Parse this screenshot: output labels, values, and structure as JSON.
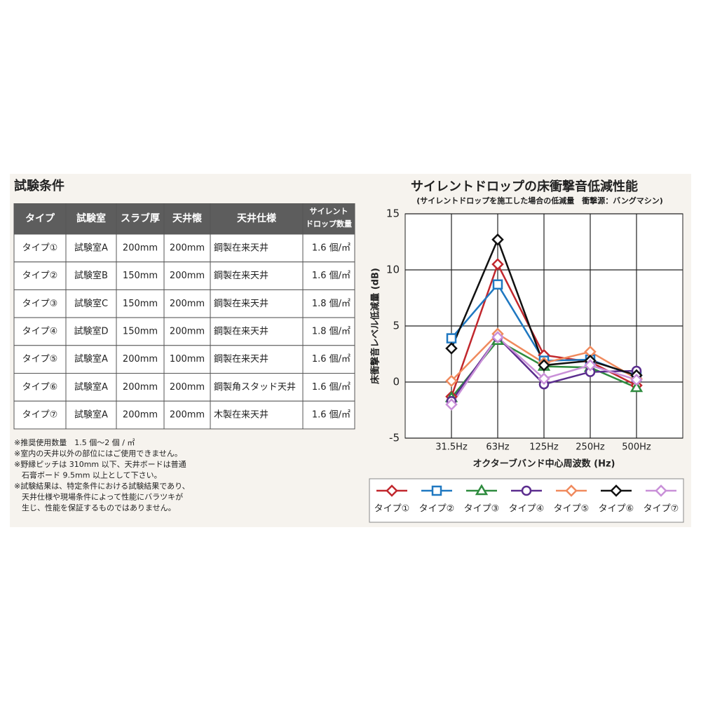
{
  "section_title": "試験条件",
  "table": {
    "header": [
      "タイプ",
      "試験室",
      "スラブ厚",
      "天井懐",
      "天井仕様",
      [
        "サイレント",
        "ドロップ数量"
      ]
    ],
    "rows": [
      [
        "タイプ①",
        "試験室A",
        "200mm",
        "200mm",
        "鋼製在来天井",
        "1.6 個/㎡"
      ],
      [
        "タイプ②",
        "試験室B",
        "150mm",
        "200mm",
        "鋼製在来天井",
        "1.6 個/㎡"
      ],
      [
        "タイプ③",
        "試験室C",
        "150mm",
        "200mm",
        "鋼製在来天井",
        "1.8 個/㎡"
      ],
      [
        "タイプ④",
        "試験室D",
        "150mm",
        "200mm",
        "鋼製在来天井",
        "1.8 個/㎡"
      ],
      [
        "タイプ⑤",
        "試験室A",
        "200mm",
        "100mm",
        "鋼製在来天井",
        "1.6 個/㎡"
      ],
      [
        "タイプ⑥",
        "試験室A",
        "200mm",
        "200mm",
        "鋼製角スタッド天井",
        "1.6 個/㎡"
      ],
      [
        "タイプ⑦",
        "試験室A",
        "200mm",
        "200mm",
        "木製在来天井",
        "1.6 個/㎡"
      ]
    ]
  },
  "notes": [
    "※推奨使用数量　1.5 個〜2 個 / ㎡",
    "※室内の天井以外の部位にはご使用できません。",
    "※野縁ピッチは 310mm 以下、天井ボードは普通",
    "　石膏ボード 9.5mm 以上として下さい。",
    "※試験結果は、特定条件における試験結果であり、",
    "　天井仕様や現場条件によって性能にバラツキが",
    "　生じ、性能を保証するものではありません。"
  ],
  "chart_data": {
    "type": "line",
    "title": "サイレントドロップの床衝撃音低減性能",
    "subtitle": "(サイレントドロップを施工した場合の低減量　衝撃源：バングマシン)",
    "y_label": "床衝撃音レベル低減量 (dB)",
    "x_label": "オクターブバンド中心周波数 (Hz)",
    "categories": [
      "31.5Hz",
      "63Hz",
      "125Hz",
      "250Hz",
      "500Hz"
    ],
    "ylim": [
      -5,
      15
    ],
    "yticks": [
      -5,
      0,
      5,
      10,
      15
    ],
    "grid": true,
    "series": [
      {
        "name": "タイプ①",
        "color": "#c1272d",
        "marker": "diamond",
        "values": [
          -1.3,
          10.5,
          2.4,
          1.8,
          -0.3
        ]
      },
      {
        "name": "タイプ②",
        "color": "#1f78c1",
        "marker": "square",
        "values": [
          3.9,
          8.7,
          1.9,
          2.0,
          0.5
        ]
      },
      {
        "name": "タイプ③",
        "color": "#2e8b3e",
        "marker": "triangle",
        "values": [
          -1.4,
          3.7,
          1.4,
          1.3,
          -0.5
        ]
      },
      {
        "name": "タイプ④",
        "color": "#5b2d8e",
        "marker": "circle",
        "values": [
          -1.7,
          4.0,
          -0.2,
          0.9,
          1.0
        ]
      },
      {
        "name": "タイプ⑤",
        "color": "#f08a5d",
        "marker": "diamond",
        "values": [
          0.1,
          4.3,
          1.7,
          2.7,
          0.3
        ]
      },
      {
        "name": "タイプ⑥",
        "color": "#111111",
        "marker": "diamond",
        "values": [
          3.0,
          12.7,
          1.5,
          1.9,
          0.6
        ]
      },
      {
        "name": "タイプ⑦",
        "color": "#c990d8",
        "marker": "diamond",
        "values": [
          -2.0,
          4.0,
          0.3,
          1.5,
          0.2
        ]
      }
    ]
  }
}
